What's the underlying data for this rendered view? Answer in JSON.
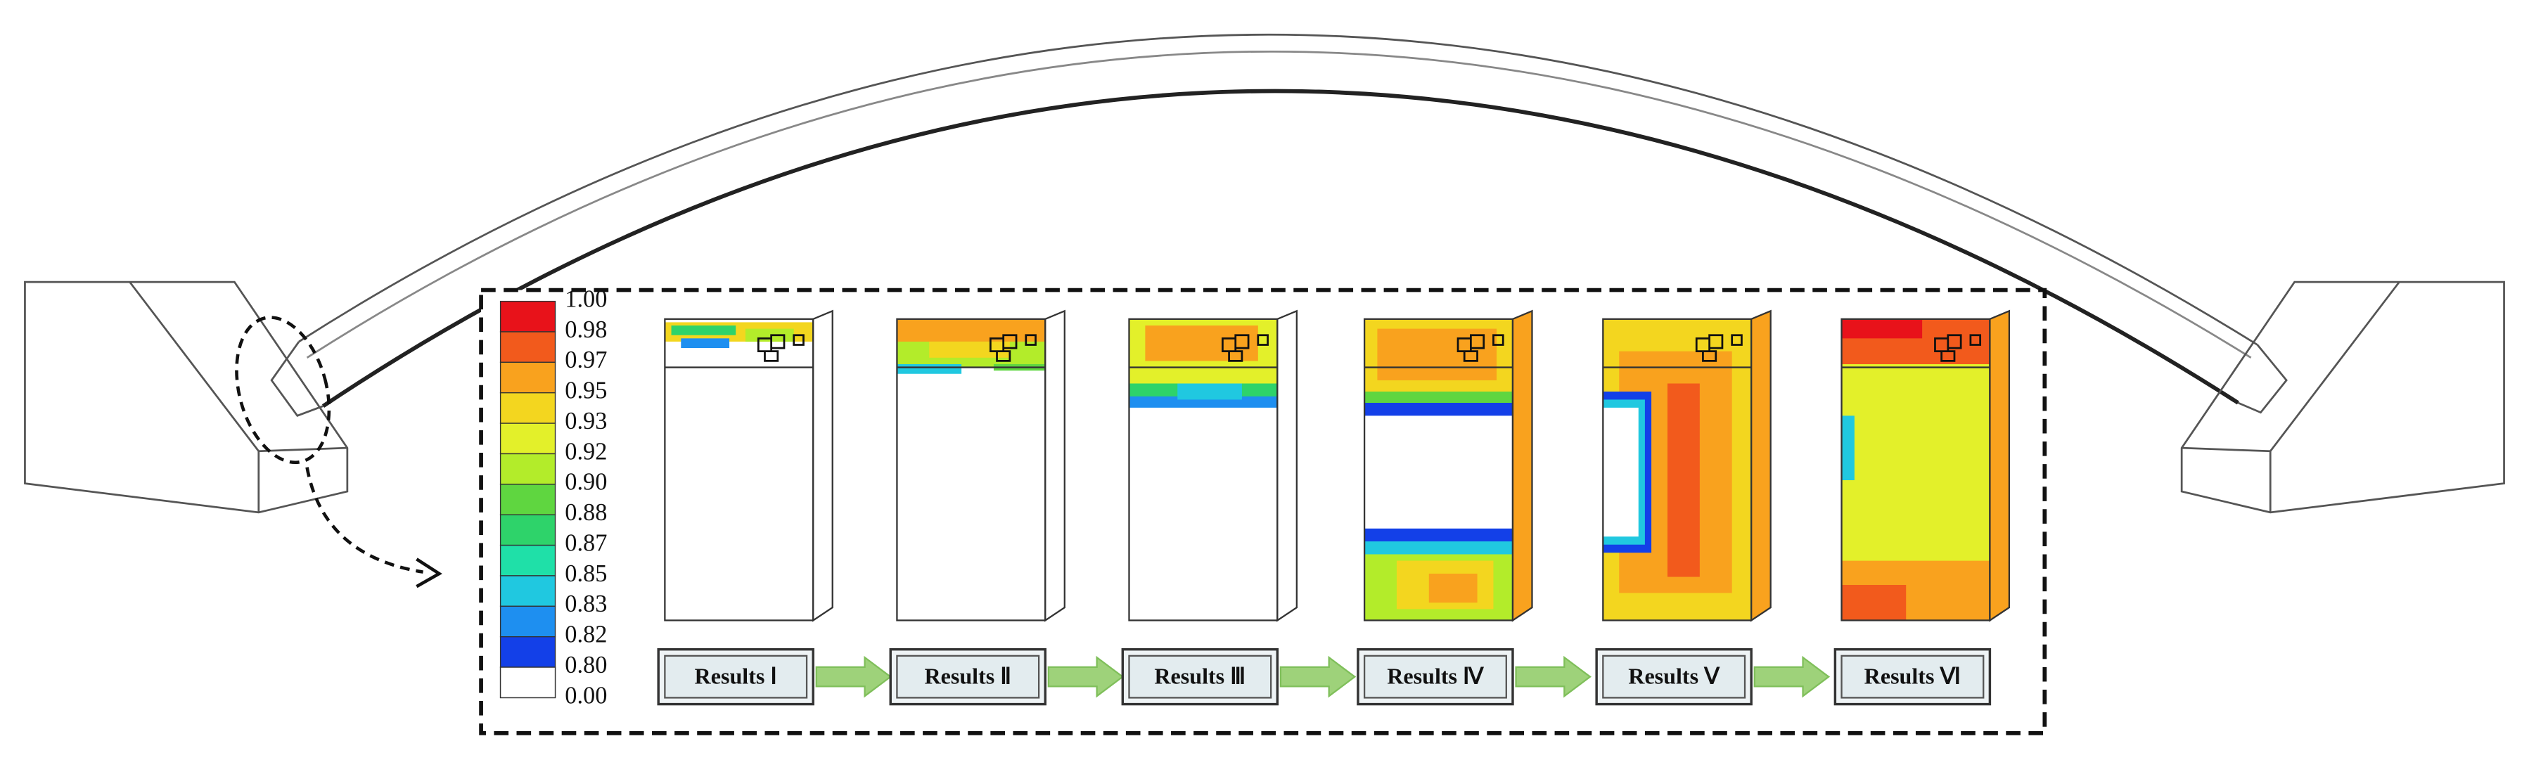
{
  "legend": {
    "labels": [
      "1.00",
      "0.98",
      "0.97",
      "0.95",
      "0.93",
      "0.92",
      "0.90",
      "0.88",
      "0.87",
      "0.85",
      "0.83",
      "0.82",
      "0.80",
      "0.00"
    ]
  },
  "results": [
    "Results Ⅰ",
    "Results Ⅱ",
    "Results Ⅲ",
    "Results Ⅳ",
    "Results Ⅴ",
    "Results Ⅵ"
  ]
}
